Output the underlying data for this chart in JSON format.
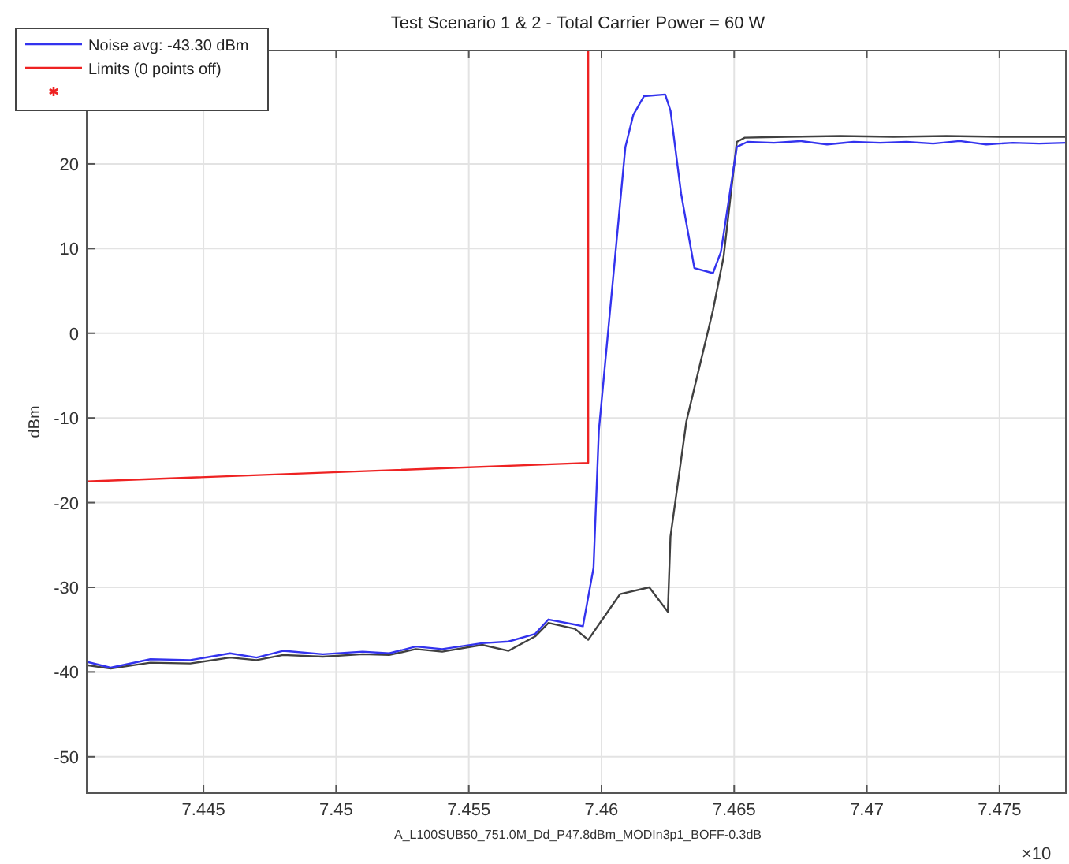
{
  "chart_data": {
    "type": "line",
    "title": "Test Scenario 1 & 2 - Total Carrier Power = 60 W",
    "xlabel": "A_L100SUB50_751.0M_Dd_P47.8dBm_MODIn3p1_BOFF-0.3dB",
    "ylabel": "dBm",
    "annotations": [
      "×10"
    ],
    "xlim": [
      7.4406,
      7.4775
    ],
    "ylim": [
      -54.3,
      33.4
    ],
    "xticks": [
      7.445,
      7.45,
      7.455,
      7.46,
      7.465,
      7.47,
      7.475
    ],
    "yticks": [
      -50,
      -40,
      -30,
      -20,
      -10,
      0,
      10,
      20
    ],
    "grid": true,
    "legend": "top left",
    "line_style": "solid",
    "series": [
      {
        "color": "#404040",
        "x": [
          7.4406,
          7.4415,
          7.443,
          7.4445,
          7.446,
          7.447,
          7.448,
          7.4495,
          7.451,
          7.452,
          7.453,
          7.454,
          7.4555,
          7.4565,
          7.4575,
          7.458,
          7.459,
          7.4595,
          7.4607,
          7.4618,
          7.4625,
          7.4626,
          7.4632,
          7.4642,
          7.4646,
          7.4651,
          7.4654,
          7.467,
          7.469,
          7.471,
          7.473,
          7.475,
          7.4775
        ],
        "values": [
          -39.2,
          -39.6,
          -38.9,
          -39.0,
          -38.3,
          -38.6,
          -38.0,
          -38.2,
          -37.9,
          -38.0,
          -37.3,
          -37.6,
          -36.8,
          -37.5,
          -35.8,
          -34.2,
          -34.9,
          -36.2,
          -30.8,
          -30.0,
          -32.9,
          -24.0,
          -10.4,
          2.7,
          9.0,
          22.6,
          23.1,
          23.2,
          23.3,
          23.2,
          23.3,
          23.2,
          23.2
        ]
      },
      {
        "name": "Noise avg: -43.30 dBm",
        "color": "#3333ee",
        "x": [
          7.4406,
          7.4415,
          7.443,
          7.4445,
          7.446,
          7.447,
          7.448,
          7.4495,
          7.451,
          7.452,
          7.453,
          7.454,
          7.4555,
          7.4565,
          7.4575,
          7.458,
          7.459,
          7.4593,
          7.4597,
          7.4599,
          7.4609,
          7.4612,
          7.4616,
          7.4624,
          7.4626,
          7.463,
          7.4635,
          7.4642,
          7.4645,
          7.4651,
          7.4655,
          7.4665,
          7.4675,
          7.4685,
          7.4695,
          7.4705,
          7.4715,
          7.4725,
          7.4735,
          7.4745,
          7.4755,
          7.4765,
          7.4775
        ],
        "values": [
          -38.8,
          -39.5,
          -38.5,
          -38.6,
          -37.8,
          -38.3,
          -37.5,
          -37.9,
          -37.6,
          -37.8,
          -37.0,
          -37.3,
          -36.6,
          -36.4,
          -35.5,
          -33.8,
          -34.4,
          -34.6,
          -27.7,
          -11.5,
          22.0,
          25.8,
          28.0,
          28.2,
          26.3,
          16.5,
          7.7,
          7.1,
          9.6,
          22.0,
          22.6,
          22.5,
          22.7,
          22.3,
          22.6,
          22.5,
          22.6,
          22.4,
          22.7,
          22.3,
          22.5,
          22.4,
          22.5
        ]
      },
      {
        "name": "Limits (0 points off)",
        "color": "#ee2222",
        "x": [
          7.4406,
          7.4595,
          7.4595
        ],
        "values": [
          -17.5,
          -15.3,
          33.4
        ]
      }
    ]
  }
}
